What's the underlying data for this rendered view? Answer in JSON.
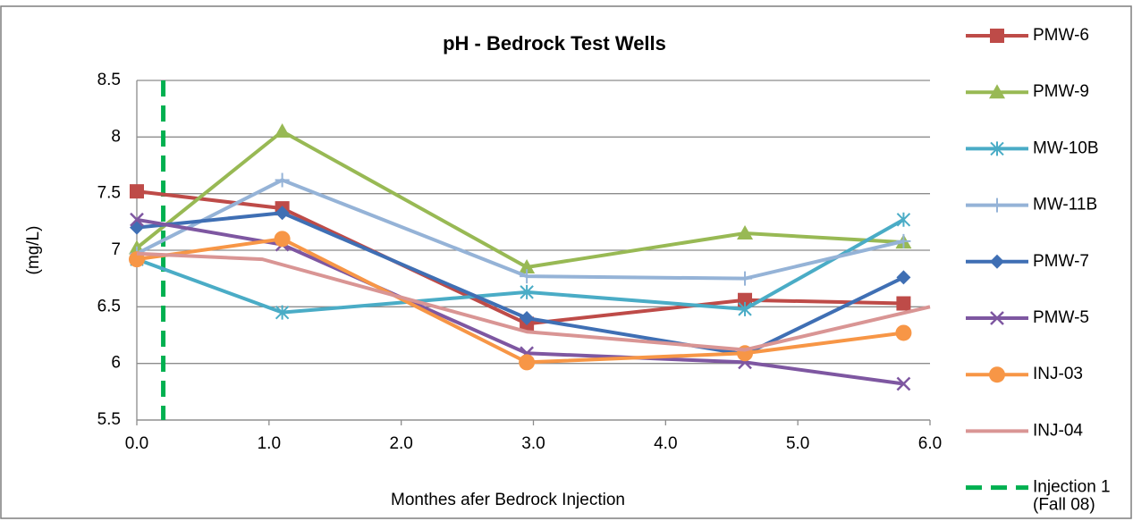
{
  "chart_data": {
    "type": "line",
    "title": "pH - Bedrock Test Wells",
    "xlabel": "Monthes afer Bedrock Injection",
    "ylabel": "(mg/L)",
    "x": [
      0,
      1.1,
      2.95,
      4.6,
      5.8
    ],
    "xlim": [
      0,
      6
    ],
    "xticks": [
      {
        "value": 0,
        "label": "0.0"
      },
      {
        "value": 1,
        "label": "1.0"
      },
      {
        "value": 2,
        "label": "2.0"
      },
      {
        "value": 3,
        "label": "3.0"
      },
      {
        "value": 4,
        "label": "4.0"
      },
      {
        "value": 5,
        "label": "5.0"
      },
      {
        "value": 6,
        "label": "6.0"
      }
    ],
    "ylim": [
      5.5,
      8.5
    ],
    "yticks": [
      5.5,
      6,
      6.5,
      7,
      7.5,
      8,
      8.5
    ],
    "grid": true,
    "legend": "right",
    "series": [
      {
        "name": "PMW-6",
        "color": "#be4b48",
        "marker": "square",
        "values": [
          7.52,
          7.37,
          6.35,
          6.56,
          6.53
        ]
      },
      {
        "name": "PMW-9",
        "color": "#98b954",
        "marker": "triangle",
        "values": [
          7.02,
          8.05,
          6.85,
          7.15,
          7.07
        ]
      },
      {
        "name": "MW-10B",
        "color": "#4aacc6",
        "marker": "asterisk",
        "values": [
          6.92,
          6.45,
          6.63,
          6.48,
          7.27
        ]
      },
      {
        "name": "MW-11B",
        "color": "#95b3d7",
        "marker": "plus",
        "values": [
          6.97,
          7.62,
          6.77,
          6.75,
          7.08
        ]
      },
      {
        "name": "PMW-7",
        "color": "#3f6fb4",
        "marker": "diamond",
        "values": [
          7.2,
          7.33,
          6.4,
          6.08,
          6.76
        ]
      },
      {
        "name": "PMW-5",
        "color": "#7e57a1",
        "marker": "x",
        "values": [
          7.27,
          7.05,
          6.09,
          6.01,
          5.82
        ]
      },
      {
        "name": "INJ-03",
        "color": "#f79646",
        "marker": "circle",
        "values": [
          6.92,
          7.1,
          6.01,
          6.09,
          6.27
        ]
      },
      {
        "name": "INJ-04",
        "color": "#d99594",
        "marker": "none",
        "x": [
          0,
          0.95,
          2.95,
          4.6,
          6.0
        ],
        "values": [
          6.97,
          6.92,
          6.28,
          6.12,
          6.5
        ]
      }
    ],
    "vlines": [
      {
        "label_lines": [
          "Injection 1",
          "(Fall 08)"
        ],
        "x": 0.2,
        "color": "#00b050"
      }
    ]
  }
}
